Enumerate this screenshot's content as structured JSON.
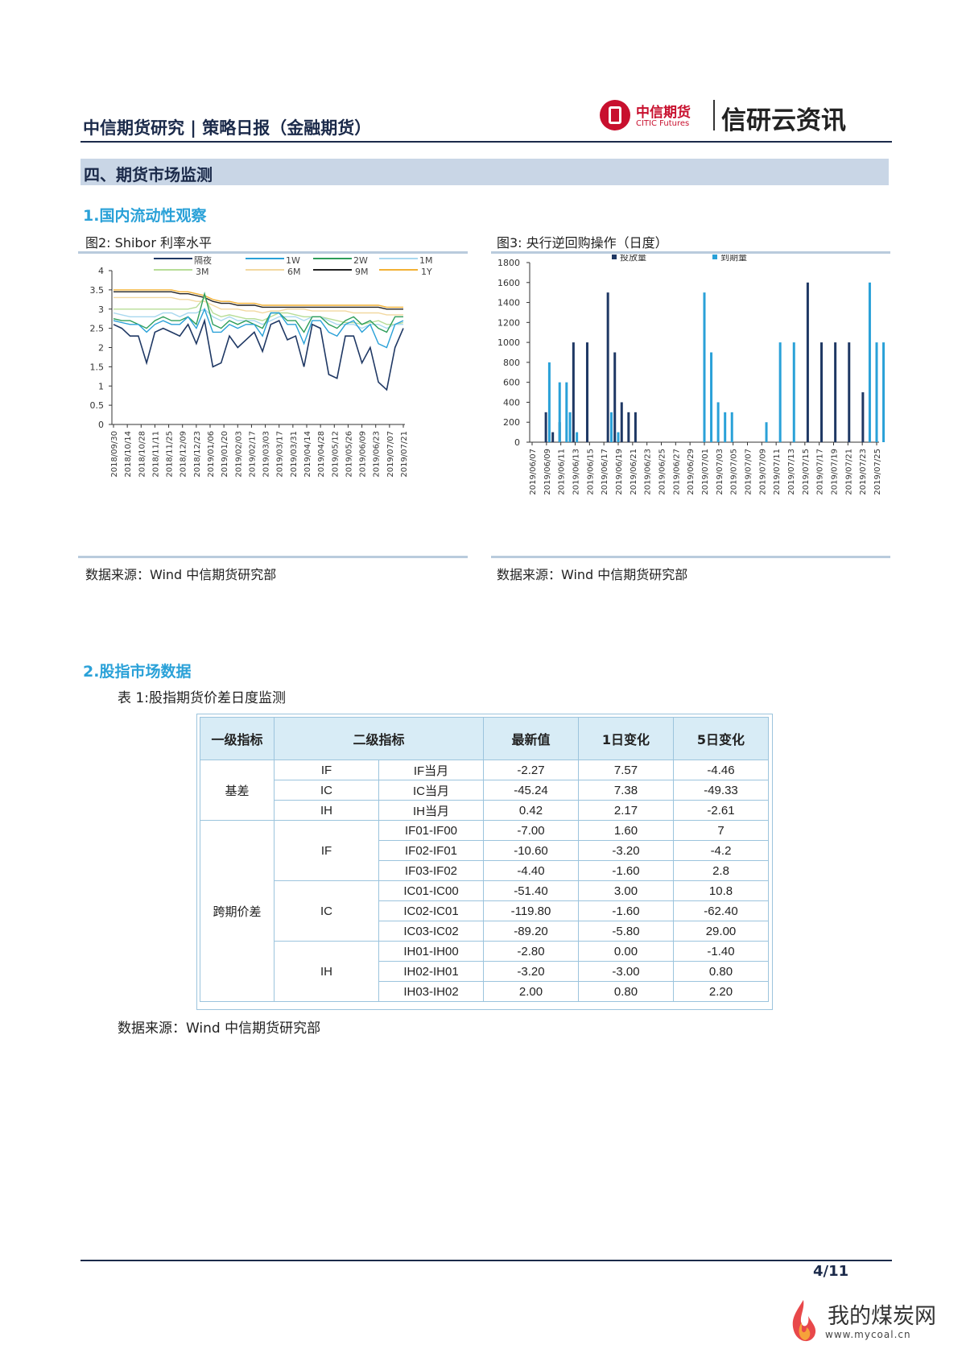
{
  "header": {
    "title": "中信期货研究 | 策略日报（金融期货）",
    "logo_cn": "中信期货",
    "logo_en": "CITIC Futures",
    "brand": "信研云资讯"
  },
  "section": {
    "title": "四、期货市场监测"
  },
  "sub1": {
    "title": "1.国内流动性观察"
  },
  "fig2": {
    "caption": "图2: Shibor 利率水平",
    "source": "数据来源：Wind   中信期货研究部"
  },
  "fig3": {
    "caption": "图3: 央行逆回购操作（日度）",
    "source": "数据来源：Wind   中信期货研究部"
  },
  "sub2": {
    "title": "2.股指市场数据"
  },
  "table1": {
    "caption": "表 1:股指期货价差日度监测",
    "source": "数据来源：Wind 中信期货研究部",
    "headers": [
      "一级指标",
      "二级指标",
      "最新值",
      "1日变化",
      "5日变化"
    ],
    "groups": {
      "basis": "基差",
      "spread": "跨期价差",
      "if": "IF",
      "ic": "IC",
      "ih": "IH"
    },
    "basis_rows": [
      {
        "l2a": "IF",
        "l2b": "IF当月",
        "v": "-2.27",
        "d1": "7.57",
        "d5": "-4.46"
      },
      {
        "l2a": "IC",
        "l2b": "IC当月",
        "v": "-45.24",
        "d1": "7.38",
        "d5": "-49.33"
      },
      {
        "l2a": "IH",
        "l2b": "IH当月",
        "v": "0.42",
        "d1": "2.17",
        "d5": "-2.61"
      }
    ],
    "spread_rows": [
      {
        "l2b": "IF01-IF00",
        "v": "-7.00",
        "d1": "1.60",
        "d5": "7"
      },
      {
        "l2b": "IF02-IF01",
        "v": "-10.60",
        "d1": "-3.20",
        "d5": "-4.2"
      },
      {
        "l2b": "IF03-IF02",
        "v": "-4.40",
        "d1": "-1.60",
        "d5": "2.8"
      },
      {
        "l2b": "IC01-IC00",
        "v": "-51.40",
        "d1": "3.00",
        "d5": "10.8"
      },
      {
        "l2b": "IC02-IC01",
        "v": "-119.80",
        "d1": "-1.60",
        "d5": "-62.40"
      },
      {
        "l2b": "IC03-IC02",
        "v": "-89.20",
        "d1": "-5.80",
        "d5": "29.00"
      },
      {
        "l2b": "IH01-IH00",
        "v": "-2.80",
        "d1": "0.00",
        "d5": "-1.40"
      },
      {
        "l2b": "IH02-IH01",
        "v": "-3.20",
        "d1": "-3.00",
        "d5": "0.80"
      },
      {
        "l2b": "IH03-IH02",
        "v": "2.00",
        "d1": "0.80",
        "d5": "2.20"
      }
    ]
  },
  "footer": {
    "page": "4/11"
  },
  "watermark": {
    "text": "我的煤炭网",
    "url": "www.mycoal.cn"
  },
  "chart_data": [
    {
      "type": "line",
      "title": "Shibor利率水平",
      "ylim": [
        0,
        4
      ],
      "yticks": [
        "4",
        "3.5",
        "3",
        "2.5",
        "2",
        "1.5",
        "1",
        "0.5",
        "0"
      ],
      "xticks": [
        "2018/09/30",
        "2018/10/14",
        "2018/10/28",
        "2018/11/11",
        "2018/11/25",
        "2018/12/09",
        "2018/12/23",
        "2019/01/06",
        "2019/01/20",
        "2019/02/03",
        "2019/02/17",
        "2019/03/03",
        "2019/03/17",
        "2019/03/31",
        "2019/04/14",
        "2019/04/28",
        "2019/05/12",
        "2019/05/26",
        "2019/06/09",
        "2019/06/23",
        "2019/07/07",
        "2019/07/21"
      ],
      "series": [
        {
          "name": "隔夜",
          "color": "#1f3864",
          "values": [
            2.6,
            2.5,
            2.3,
            2.3,
            1.6,
            2.4,
            2.5,
            2.4,
            2.3,
            2.6,
            2.1,
            2.7,
            1.5,
            1.6,
            2.3,
            2.0,
            2.2,
            2.4,
            1.9,
            2.6,
            2.7,
            2.2,
            2.3,
            1.5,
            2.6,
            2.5,
            1.3,
            1.2,
            2.3,
            2.3,
            1.6,
            2.0,
            1.1,
            0.9,
            2.0,
            2.5
          ]
        },
        {
          "name": "1W",
          "color": "#2aa1d8",
          "values": [
            2.7,
            2.65,
            2.6,
            2.6,
            2.4,
            2.6,
            2.7,
            2.6,
            2.6,
            2.8,
            2.5,
            3.0,
            2.4,
            2.4,
            2.6,
            2.5,
            2.6,
            2.6,
            2.3,
            2.9,
            2.9,
            2.6,
            2.6,
            2.1,
            2.7,
            2.7,
            2.4,
            2.3,
            2.6,
            2.7,
            2.4,
            2.6,
            2.1,
            2.0,
            2.6,
            2.7
          ]
        },
        {
          "name": "2W",
          "color": "#2e9e5a",
          "values": [
            2.75,
            2.7,
            2.7,
            2.6,
            2.5,
            2.7,
            2.8,
            2.7,
            2.7,
            2.8,
            2.6,
            3.4,
            2.6,
            2.5,
            2.7,
            2.6,
            2.7,
            2.6,
            2.5,
            2.9,
            2.9,
            2.7,
            2.7,
            2.4,
            2.8,
            2.8,
            2.6,
            2.5,
            2.7,
            2.8,
            2.6,
            2.7,
            2.5,
            2.4,
            2.8,
            2.8
          ]
        },
        {
          "name": "1M",
          "color": "#a9d8ef",
          "values": [
            2.9,
            2.85,
            2.8,
            2.8,
            2.8,
            2.8,
            2.9,
            2.9,
            2.8,
            2.9,
            2.9,
            3.0,
            2.8,
            2.7,
            2.8,
            2.7,
            2.7,
            2.7,
            2.6,
            2.7,
            2.8,
            2.8,
            2.8,
            2.7,
            2.8,
            2.8,
            2.7,
            2.6,
            2.6,
            2.6,
            2.5,
            2.6,
            2.6,
            2.5,
            2.6,
            2.6
          ]
        },
        {
          "name": "3M",
          "color": "#b7dd97",
          "values": [
            3.0,
            3.0,
            3.0,
            3.0,
            3.0,
            3.0,
            3.0,
            3.0,
            3.0,
            3.0,
            3.05,
            3.3,
            2.9,
            2.8,
            2.85,
            2.8,
            2.75,
            2.75,
            2.7,
            2.8,
            2.9,
            2.9,
            2.85,
            2.8,
            2.8,
            2.8,
            2.75,
            2.7,
            2.65,
            2.65,
            2.6,
            2.65,
            2.7,
            2.6,
            2.6,
            2.65
          ]
        },
        {
          "name": "6M",
          "color": "#f2d8a0",
          "values": [
            3.3,
            3.3,
            3.3,
            3.3,
            3.3,
            3.3,
            3.3,
            3.3,
            3.25,
            3.25,
            3.2,
            3.2,
            3.1,
            3.0,
            3.0,
            3.0,
            2.95,
            2.95,
            2.9,
            2.95,
            2.95,
            3.0,
            3.0,
            3.0,
            2.95,
            2.95,
            2.95,
            2.95,
            2.95,
            2.9,
            2.9,
            2.9,
            2.9,
            2.85,
            2.85,
            2.85
          ]
        },
        {
          "name": "9M",
          "color": "#222222",
          "values": [
            3.45,
            3.45,
            3.45,
            3.45,
            3.45,
            3.45,
            3.45,
            3.45,
            3.4,
            3.4,
            3.35,
            3.3,
            3.2,
            3.15,
            3.15,
            3.1,
            3.1,
            3.1,
            3.05,
            3.05,
            3.05,
            3.05,
            3.05,
            3.05,
            3.05,
            3.05,
            3.05,
            3.05,
            3.05,
            3.05,
            3.05,
            3.05,
            3.05,
            3.0,
            3.0,
            3.0
          ]
        },
        {
          "name": "1Y",
          "color": "#f2b134",
          "values": [
            3.5,
            3.5,
            3.5,
            3.5,
            3.5,
            3.5,
            3.5,
            3.5,
            3.45,
            3.45,
            3.4,
            3.35,
            3.25,
            3.2,
            3.2,
            3.15,
            3.15,
            3.15,
            3.1,
            3.1,
            3.1,
            3.1,
            3.1,
            3.1,
            3.1,
            3.1,
            3.1,
            3.1,
            3.1,
            3.1,
            3.1,
            3.1,
            3.1,
            3.05,
            3.05,
            3.05
          ]
        }
      ]
    },
    {
      "type": "bar",
      "ylim": [
        0,
        1800
      ],
      "yticks": [
        "1800",
        "1600",
        "1400",
        "1200",
        "1000",
        "800",
        "600",
        "400",
        "200",
        "0"
      ],
      "xticks": [
        "2019/06/07",
        "2019/06/09",
        "2019/06/11",
        "2019/06/13",
        "2019/06/15",
        "2019/06/17",
        "2019/06/19",
        "2019/06/21",
        "2019/06/23",
        "2019/06/25",
        "2019/06/27",
        "2019/06/29",
        "2019/07/01",
        "2019/07/03",
        "2019/07/05",
        "2019/07/07",
        "2019/07/09",
        "2019/07/11",
        "2019/07/13",
        "2019/07/15",
        "2019/07/17",
        "2019/07/19",
        "2019/07/21",
        "2019/07/23",
        "2019/07/25"
      ],
      "series": [
        {
          "name": "投放量",
          "color": "#1f3864",
          "points": [
            [
              1,
              300
            ],
            [
              1.5,
              100
            ],
            [
              2,
              200
            ],
            [
              3,
              1000
            ],
            [
              4,
              1000
            ],
            [
              5.5,
              1500
            ],
            [
              6,
              900
            ],
            [
              6.5,
              400
            ],
            [
              7,
              300
            ],
            [
              7.5,
              300
            ],
            [
              20,
              1600
            ],
            [
              21,
              1000
            ],
            [
              22,
              1000
            ],
            [
              23,
              1000
            ],
            [
              24,
              500
            ]
          ]
        },
        {
          "name": "到期量",
          "color": "#2aa1d8",
          "points": [
            [
              1.25,
              800
            ],
            [
              2,
              600
            ],
            [
              2.5,
              600
            ],
            [
              2.75,
              300
            ],
            [
              3.25,
              100
            ],
            [
              5.75,
              300
            ],
            [
              6.25,
              100
            ],
            [
              12.5,
              1500
            ],
            [
              13,
              900
            ],
            [
              13.5,
              400
            ],
            [
              14,
              300
            ],
            [
              14.5,
              300
            ],
            [
              17,
              200
            ],
            [
              18,
              1000
            ],
            [
              19,
              1000
            ],
            [
              24.5,
              1600
            ],
            [
              25,
              1000
            ],
            [
              25.5,
              1000
            ]
          ]
        }
      ]
    }
  ]
}
